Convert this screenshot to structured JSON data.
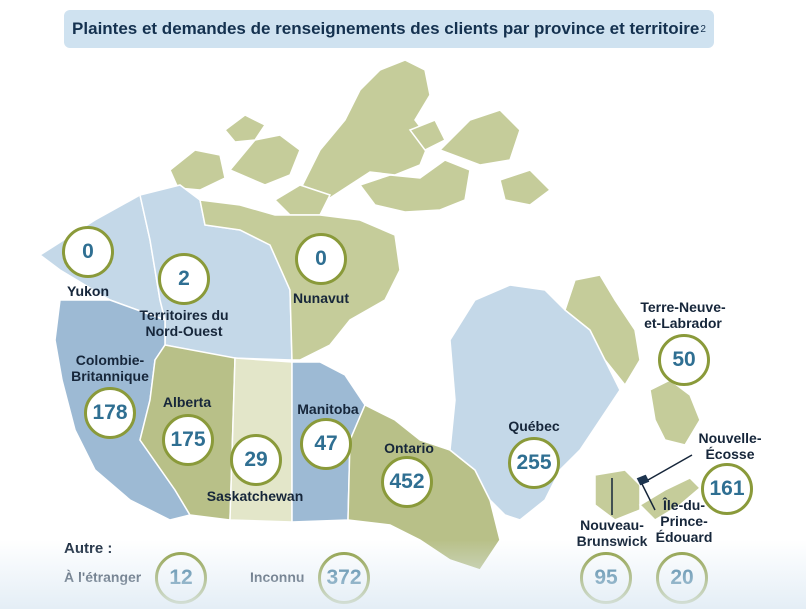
{
  "title": "Plaintes et demandes de renseignements des clients par province et territoire",
  "title_footnote": "2",
  "colors": {
    "title_bg": "#cfe2f0",
    "bubble_border": "#8a9a3a",
    "value_text": "#2f6f92",
    "label_text": "#16263a",
    "region_blue": "#9dbad4",
    "region_pale_blue": "#c4d8e8",
    "region_green": "#c5cc9a",
    "region_olive": "#b8c088"
  },
  "regions": [
    {
      "name": "Yukon",
      "value": "0"
    },
    {
      "name": "Territoires du\nNord-Ouest",
      "value": "2"
    },
    {
      "name": "Nunavut",
      "value": "0"
    },
    {
      "name": "Terre-Neuve-\net-Labrador",
      "value": "50"
    },
    {
      "name": "Colombie-\nBritannique",
      "value": "178"
    },
    {
      "name": "Alberta",
      "value": "175"
    },
    {
      "name": "Saskatchewan",
      "value": "29"
    },
    {
      "name": "Manitoba",
      "value": "47"
    },
    {
      "name": "Ontario",
      "value": "452"
    },
    {
      "name": "Québec",
      "value": "255"
    },
    {
      "name": "Nouvelle-\nÉcosse",
      "value": "161"
    },
    {
      "name": "Nouveau-\nBrunswick",
      "value": "95"
    },
    {
      "name": "Île-du-\nPrince-\nÉdouard",
      "value": "20"
    }
  ],
  "other": {
    "heading": "Autre :",
    "abroad_label": "À l'étranger",
    "abroad_value": "12",
    "unknown_label": "Inconnu",
    "unknown_value": "372"
  }
}
